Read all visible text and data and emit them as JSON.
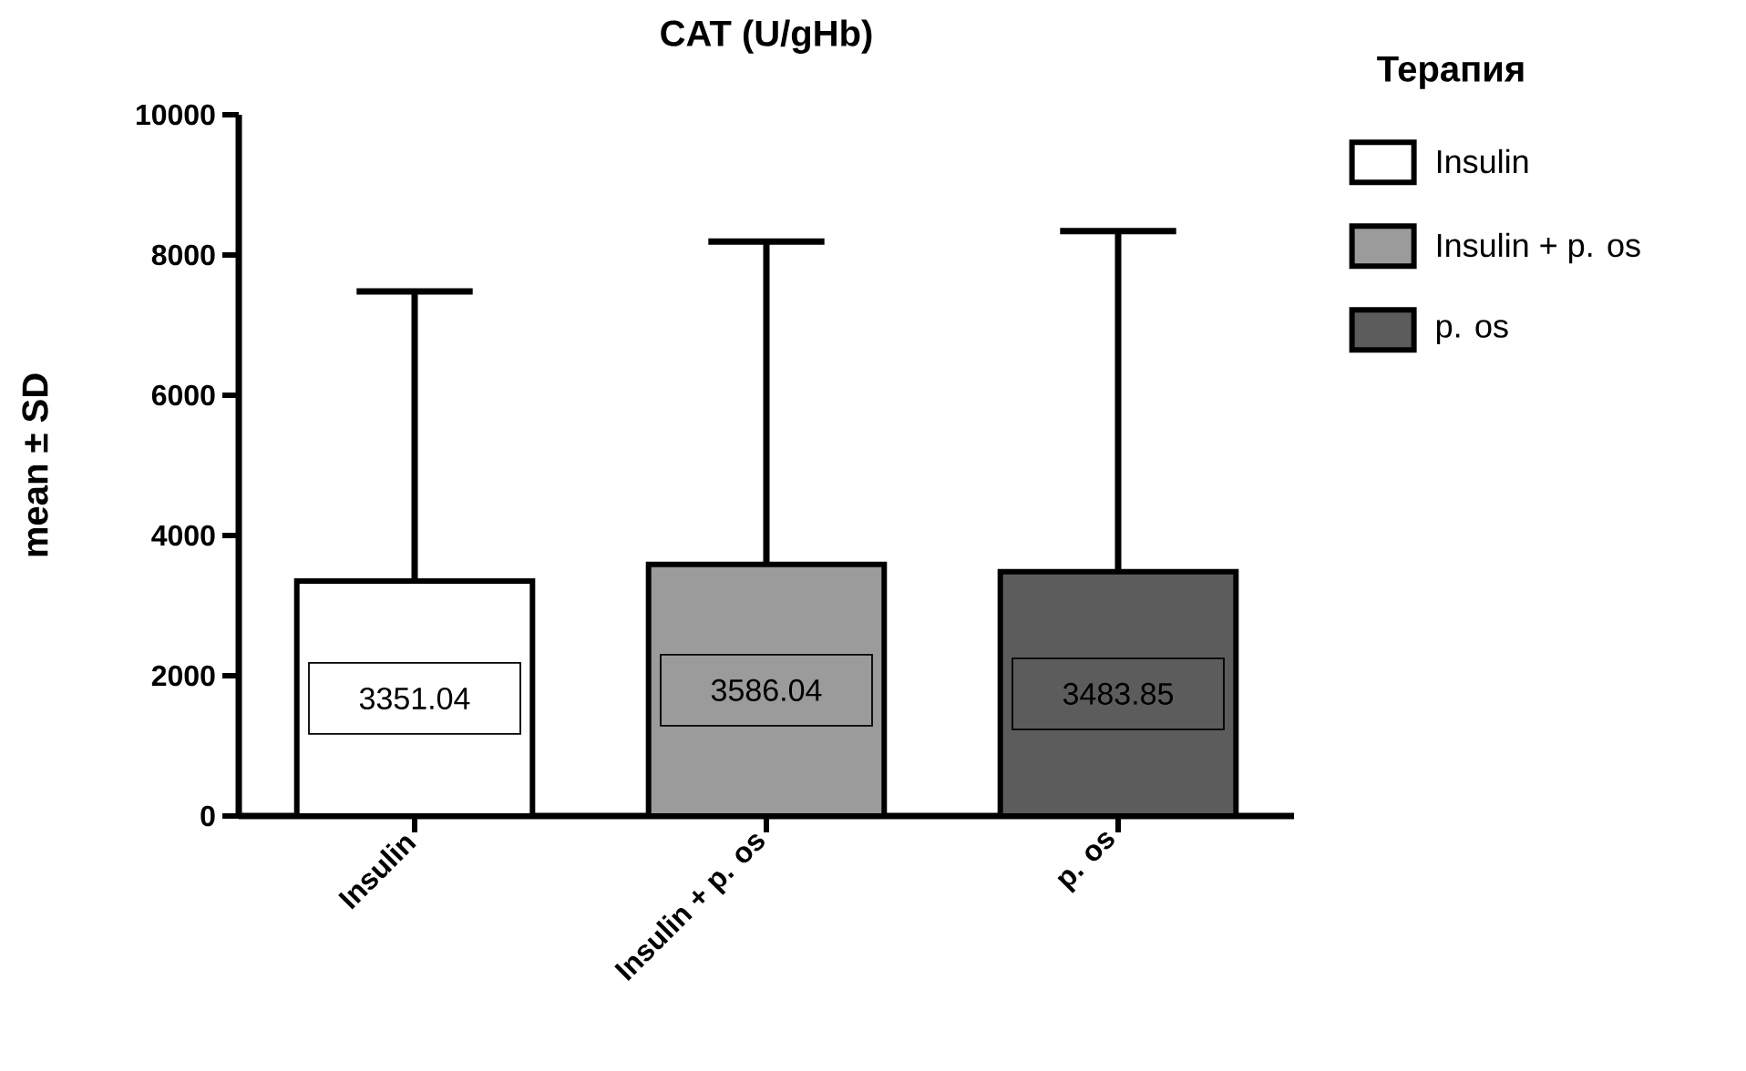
{
  "chart_data": {
    "type": "bar",
    "title": "CAT (U/gHb)",
    "ylabel": "mean ± SD",
    "legend_title": "Терапия",
    "categories": [
      "Insulin",
      "Insulin + p. os",
      "p. os"
    ],
    "series": [
      {
        "name": "Insulin",
        "color": "#ffffff",
        "values": [
          3351.04,
          null,
          null
        ],
        "errors": [
          [
            3351.04,
            7480
          ],
          null,
          null
        ]
      },
      {
        "name": "Insulin + p. os",
        "color": "#9b9b9b",
        "values": [
          null,
          3586.04,
          null
        ],
        "errors": [
          null,
          [
            3586.04,
            8190
          ],
          null
        ]
      },
      {
        "name": "p. os",
        "color": "#5c5c5c",
        "values": [
          null,
          null,
          3483.85
        ],
        "errors": [
          null,
          null,
          [
            3483.85,
            8340
          ]
        ]
      }
    ],
    "data_labels": true,
    "ylim": [
      0,
      10000
    ],
    "yticks": [
      0,
      2000,
      4000,
      6000,
      8000,
      10000
    ],
    "legend": "top right"
  }
}
